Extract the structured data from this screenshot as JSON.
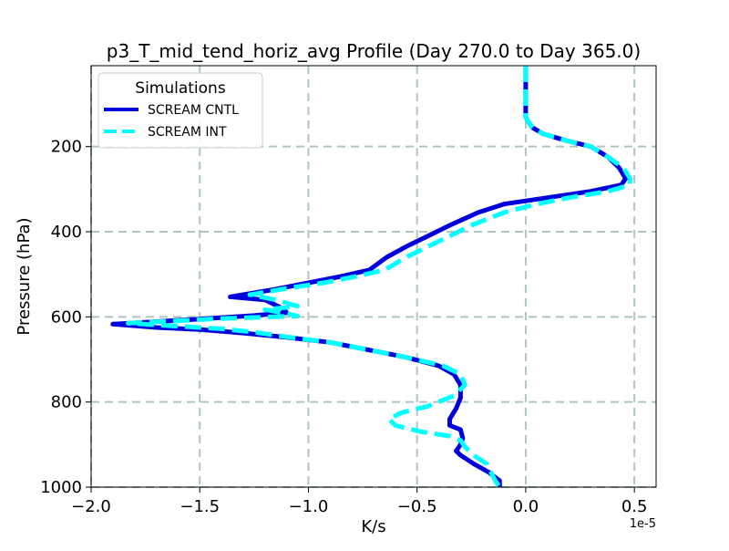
{
  "chart_data": {
    "type": "line",
    "orientation": "profile",
    "title": "p3_T_mid_tend_horiz_avg Profile (Day 270.0 to Day 365.0)",
    "xlabel": "K/s",
    "ylabel": "Pressure (hPa)",
    "x_offset_label": "1e-5",
    "x_scale": 1e-05,
    "xlim": [
      -2.0,
      0.6
    ],
    "ylim": [
      1000,
      10
    ],
    "y_inverted": true,
    "grid": true,
    "legend": {
      "title": "Simulations",
      "placement": "top-left"
    },
    "x_ticks": [
      {
        "value": -2.0,
        "label": "−2.0"
      },
      {
        "value": -1.5,
        "label": "−1.5"
      },
      {
        "value": -1.0,
        "label": "−1.0"
      },
      {
        "value": -0.5,
        "label": "−0.5"
      },
      {
        "value": 0.0,
        "label": "0.0"
      },
      {
        "value": 0.5,
        "label": "0.5"
      }
    ],
    "y_ticks": [
      {
        "value": 200,
        "label": "200"
      },
      {
        "value": 400,
        "label": "400"
      },
      {
        "value": 600,
        "label": "600"
      },
      {
        "value": 800,
        "label": "800"
      },
      {
        "value": 1000,
        "label": "1000"
      }
    ],
    "series": [
      {
        "name": "SCREAM CNTL",
        "color": "#0000dd",
        "style": "solid",
        "points": [
          [
            0.0,
            10
          ],
          [
            0.0,
            60
          ],
          [
            0.0,
            110
          ],
          [
            0.0,
            130
          ],
          [
            0.01,
            140
          ],
          [
            0.03,
            155
          ],
          [
            0.08,
            170
          ],
          [
            0.18,
            185
          ],
          [
            0.3,
            200
          ],
          [
            0.38,
            225
          ],
          [
            0.43,
            250
          ],
          [
            0.46,
            275
          ],
          [
            0.44,
            290
          ],
          [
            0.3,
            305
          ],
          [
            0.1,
            320
          ],
          [
            -0.1,
            335
          ],
          [
            -0.22,
            355
          ],
          [
            -0.35,
            385
          ],
          [
            -0.45,
            410
          ],
          [
            -0.55,
            435
          ],
          [
            -0.64,
            460
          ],
          [
            -0.72,
            490
          ],
          [
            -0.85,
            505
          ],
          [
            -1.0,
            520
          ],
          [
            -1.15,
            535
          ],
          [
            -1.36,
            553
          ],
          [
            -1.2,
            560
          ],
          [
            -1.12,
            580
          ],
          [
            -1.1,
            590
          ],
          [
            -1.25,
            597
          ],
          [
            -1.5,
            605
          ],
          [
            -1.9,
            617
          ],
          [
            -1.7,
            625
          ],
          [
            -1.5,
            630
          ],
          [
            -1.3,
            638
          ],
          [
            -1.1,
            648
          ],
          [
            -0.9,
            660
          ],
          [
            -0.75,
            675
          ],
          [
            -0.55,
            695
          ],
          [
            -0.4,
            715
          ],
          [
            -0.33,
            735
          ],
          [
            -0.3,
            760
          ],
          [
            -0.3,
            790
          ],
          [
            -0.32,
            815
          ],
          [
            -0.35,
            840
          ],
          [
            -0.35,
            855
          ],
          [
            -0.3,
            865
          ],
          [
            -0.29,
            885
          ],
          [
            -0.3,
            900
          ],
          [
            -0.32,
            915
          ],
          [
            -0.3,
            925
          ],
          [
            -0.24,
            945
          ],
          [
            -0.17,
            965
          ],
          [
            -0.12,
            985
          ],
          [
            -0.12,
            1000
          ]
        ]
      },
      {
        "name": "SCREAM INT",
        "color": "#00ffff",
        "style": "dashed",
        "points": [
          [
            0.0,
            10
          ],
          [
            0.0,
            60
          ],
          [
            0.0,
            110
          ],
          [
            0.0,
            130
          ],
          [
            0.01,
            140
          ],
          [
            0.03,
            155
          ],
          [
            0.08,
            170
          ],
          [
            0.18,
            185
          ],
          [
            0.3,
            200
          ],
          [
            0.38,
            225
          ],
          [
            0.45,
            250
          ],
          [
            0.48,
            275
          ],
          [
            0.48,
            290
          ],
          [
            0.38,
            305
          ],
          [
            0.2,
            320
          ],
          [
            0.05,
            335
          ],
          [
            -0.1,
            355
          ],
          [
            -0.25,
            385
          ],
          [
            -0.35,
            410
          ],
          [
            -0.45,
            435
          ],
          [
            -0.55,
            460
          ],
          [
            -0.65,
            490
          ],
          [
            -0.78,
            505
          ],
          [
            -0.93,
            520
          ],
          [
            -1.1,
            533
          ],
          [
            -1.27,
            548
          ],
          [
            -1.15,
            560
          ],
          [
            -1.05,
            575
          ],
          [
            -1.2,
            583
          ],
          [
            -1.1,
            592
          ],
          [
            -1.05,
            598
          ],
          [
            -1.4,
            604
          ],
          [
            -1.83,
            615
          ],
          [
            -1.6,
            622
          ],
          [
            -1.4,
            628
          ],
          [
            -1.25,
            636
          ],
          [
            -1.1,
            647
          ],
          [
            -0.9,
            660
          ],
          [
            -0.75,
            675
          ],
          [
            -0.55,
            695
          ],
          [
            -0.38,
            715
          ],
          [
            -0.3,
            735
          ],
          [
            -0.28,
            760
          ],
          [
            -0.33,
            785
          ],
          [
            -0.45,
            810
          ],
          [
            -0.57,
            825
          ],
          [
            -0.63,
            840
          ],
          [
            -0.6,
            855
          ],
          [
            -0.48,
            870
          ],
          [
            -0.35,
            880
          ],
          [
            -0.3,
            890
          ],
          [
            -0.28,
            905
          ],
          [
            -0.24,
            925
          ],
          [
            -0.18,
            945
          ],
          [
            -0.16,
            965
          ],
          [
            -0.14,
            985
          ],
          [
            -0.12,
            1000
          ]
        ]
      }
    ]
  }
}
